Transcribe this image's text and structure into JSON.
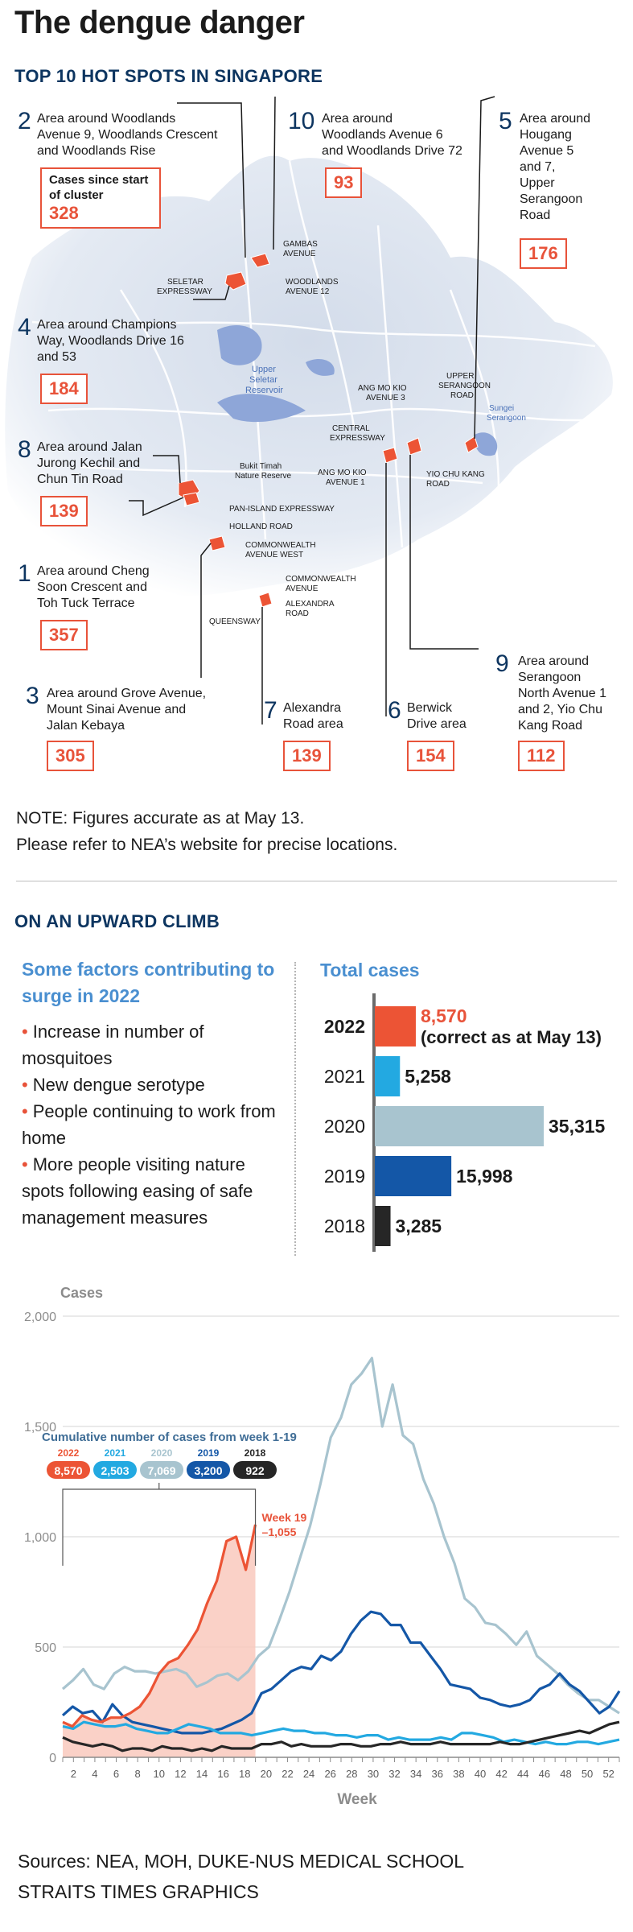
{
  "title": "The dengue danger",
  "section1": "TOP 10 HOT SPOTS IN SINGAPORE",
  "map": {
    "cases_label": "Cases since start of cluster",
    "hotspots": [
      {
        "num": "2",
        "desc": [
          "Area around Woodlands",
          "Avenue 9, Woodlands Crescent",
          "and Woodlands Rise"
        ],
        "cases": "328"
      },
      {
        "num": "10",
        "desc": [
          "Area around",
          "Woodlands Avenue 6",
          "and Woodlands Drive 72"
        ],
        "cases": "93"
      },
      {
        "num": "5",
        "desc": [
          "Area around",
          "Hougang",
          "Avenue 5",
          "and 7,",
          "Upper",
          "Serangoon",
          "Road"
        ],
        "cases": "176"
      },
      {
        "num": "4",
        "desc": [
          "Area around Champions",
          "Way, Woodlands Drive 16",
          "and 53"
        ],
        "cases": "184"
      },
      {
        "num": "8",
        "desc": [
          "Area around Jalan",
          "Jurong Kechil and",
          "Chun Tin Road"
        ],
        "cases": "139"
      },
      {
        "num": "1",
        "desc": [
          "Area around Cheng",
          "Soon Crescent and",
          "Toh Tuck Terrace"
        ],
        "cases": "357"
      },
      {
        "num": "3",
        "desc": [
          "Area around Grove Avenue,",
          "Mount Sinai Avenue and",
          "Jalan Kebaya"
        ],
        "cases": "305"
      },
      {
        "num": "7",
        "desc": [
          "Alexandra",
          "Road area"
        ],
        "cases": "139"
      },
      {
        "num": "6",
        "desc": [
          "Berwick",
          "Drive area"
        ],
        "cases": "154"
      },
      {
        "num": "9",
        "desc": [
          "Area around",
          "Serangoon",
          "North Avenue 1",
          "and 2, Yio Chu",
          "Kang Road"
        ],
        "cases": "112"
      }
    ],
    "labels": {
      "gambas": [
        "GAMBAS",
        "AVENUE"
      ],
      "seletar_exp": [
        "SELETAR",
        "EXPRESSWAY"
      ],
      "woodlands12": [
        "WOODLANDS",
        "AVENUE 12"
      ],
      "reservoir": [
        "Upper",
        "Seletar",
        "Reservoir"
      ],
      "upper_serangoon": [
        "UPPER",
        "SERANGOON",
        "ROAD"
      ],
      "amk3": [
        "ANG MO KIO",
        "AVENUE 3"
      ],
      "sungei": [
        "Sungei",
        "Serangoon"
      ],
      "cte": [
        "CENTRAL",
        "EXPRESSWAY"
      ],
      "bukit_timah": [
        "Bukit Timah",
        "Nature Reserve"
      ],
      "amk1": [
        "ANG MO KIO",
        "AVENUE 1"
      ],
      "yck": [
        "YIO CHU KANG",
        "ROAD"
      ],
      "pie": [
        "PAN-ISLAND EXPRESSWAY"
      ],
      "holland": [
        "HOLLAND ROAD"
      ],
      "cw_west": [
        "COMMONWEALTH",
        "AVENUE WEST"
      ],
      "cw": [
        "COMMONWEALTH",
        "AVENUE"
      ],
      "alexandra": [
        "ALEXANDRA",
        "ROAD"
      ],
      "queensway": [
        "QUEENSWAY"
      ]
    }
  },
  "note": [
    "NOTE: Figures accurate as at May 13.",
    "Please refer to NEA’s website for precise locations."
  ],
  "section2": "ON AN UPWARD CLIMB",
  "factors_heading": "Some factors contributing to surge in 2022",
  "factors": [
    "Increase in number of mosquitoes",
    "New dengue serotype",
    "People continuing to work from home",
    "More people visiting nature spots following easing of safe management measures"
  ],
  "total_cases_heading": "Total cases",
  "colors": {
    "y2022": "#ec5435",
    "y2021": "#23a9e1",
    "y2020": "#a8c4cf",
    "y2019": "#1457a7",
    "y2018": "#262626",
    "accent": "#e8533a",
    "navy": "#0d3560",
    "heading_blue": "#4a8fd0"
  },
  "chart_data": [
    {
      "type": "bar",
      "title": "Total cases",
      "categories": [
        "2022",
        "2021",
        "2020",
        "2019",
        "2018"
      ],
      "values": [
        8570,
        5258,
        35315,
        15998,
        3285
      ],
      "value_labels": [
        "8,570",
        "5,258",
        "35,315",
        "15,998",
        "3,285"
      ],
      "note_2022": "(correct as at May 13)",
      "colors": [
        "#ec5435",
        "#23a9e1",
        "#a8c4cf",
        "#1457a7",
        "#262626"
      ]
    },
    {
      "type": "line",
      "ylabel": "Cases",
      "xlabel": "Week",
      "ylim": [
        0,
        2000
      ],
      "yticks": [
        0,
        500,
        1000,
        1500,
        2000
      ],
      "ytick_labels": [
        "0",
        "500",
        "1,000",
        "1,500",
        "2,000"
      ],
      "xticks": [
        2,
        4,
        6,
        8,
        10,
        12,
        14,
        16,
        18,
        20,
        22,
        24,
        26,
        28,
        30,
        32,
        34,
        36,
        38,
        40,
        42,
        44,
        46,
        48,
        50,
        52
      ],
      "grid": true,
      "cumulative_title": "Cumulative number of cases from week 1-19",
      "cumulative": [
        {
          "year": "2022",
          "value": "8,570"
        },
        {
          "year": "2021",
          "value": "2,503"
        },
        {
          "year": "2020",
          "value": "7,069"
        },
        {
          "year": "2019",
          "value": "3,200"
        },
        {
          "year": "2018",
          "value": "922"
        }
      ],
      "annotation": {
        "line1": "Week 19",
        "line2": "1,055"
      },
      "series": [
        {
          "name": "2020",
          "values": [
            310,
            350,
            400,
            330,
            310,
            380,
            410,
            390,
            390,
            380,
            390,
            400,
            380,
            320,
            340,
            370,
            380,
            350,
            390,
            460,
            500,
            620,
            750,
            900,
            1050,
            1240,
            1450,
            1540,
            1690,
            1740,
            1810,
            1500,
            1690,
            1460,
            1420,
            1260,
            1150,
            1000,
            880,
            720,
            680,
            610,
            600,
            560,
            510,
            570,
            460,
            420,
            380,
            330,
            290,
            260,
            260,
            230,
            200
          ]
        },
        {
          "name": "2019",
          "values": [
            190,
            230,
            200,
            210,
            160,
            240,
            190,
            160,
            150,
            140,
            130,
            120,
            110,
            110,
            110,
            120,
            130,
            150,
            170,
            200,
            290,
            310,
            350,
            390,
            410,
            400,
            460,
            440,
            480,
            560,
            620,
            660,
            650,
            600,
            600,
            520,
            520,
            460,
            400,
            330,
            320,
            310,
            270,
            260,
            240,
            230,
            240,
            260,
            310,
            330,
            380,
            330,
            300,
            250,
            200,
            230,
            300
          ]
        },
        {
          "name": "2022",
          "values": [
            160,
            140,
            190,
            170,
            160,
            180,
            180,
            200,
            230,
            290,
            380,
            430,
            450,
            510,
            580,
            700,
            800,
            980,
            1000,
            850,
            1055
          ]
        },
        {
          "name": "2021",
          "values": [
            140,
            130,
            160,
            150,
            140,
            140,
            150,
            130,
            120,
            110,
            110,
            130,
            150,
            140,
            130,
            110,
            110,
            110,
            100,
            110,
            120,
            130,
            120,
            120,
            110,
            110,
            100,
            100,
            90,
            100,
            100,
            80,
            90,
            80,
            80,
            80,
            90,
            80,
            110,
            110,
            100,
            90,
            70,
            80,
            70,
            60,
            70,
            60,
            60,
            70,
            70,
            60,
            70,
            80
          ]
        },
        {
          "name": "2018",
          "values": [
            90,
            70,
            60,
            50,
            60,
            50,
            30,
            40,
            40,
            30,
            50,
            40,
            40,
            30,
            40,
            30,
            50,
            40,
            40,
            40,
            60,
            60,
            70,
            50,
            60,
            50,
            50,
            50,
            60,
            60,
            50,
            50,
            60,
            60,
            70,
            60,
            60,
            60,
            70,
            60,
            60,
            60,
            60,
            60,
            70,
            60,
            60,
            70,
            80,
            90,
            100,
            110,
            120,
            110,
            130,
            150,
            160
          ]
        }
      ]
    }
  ],
  "sources": [
    "Sources: NEA, MOH, DUKE-NUS MEDICAL SCHOOL",
    "STRAITS TIMES GRAPHICS"
  ]
}
